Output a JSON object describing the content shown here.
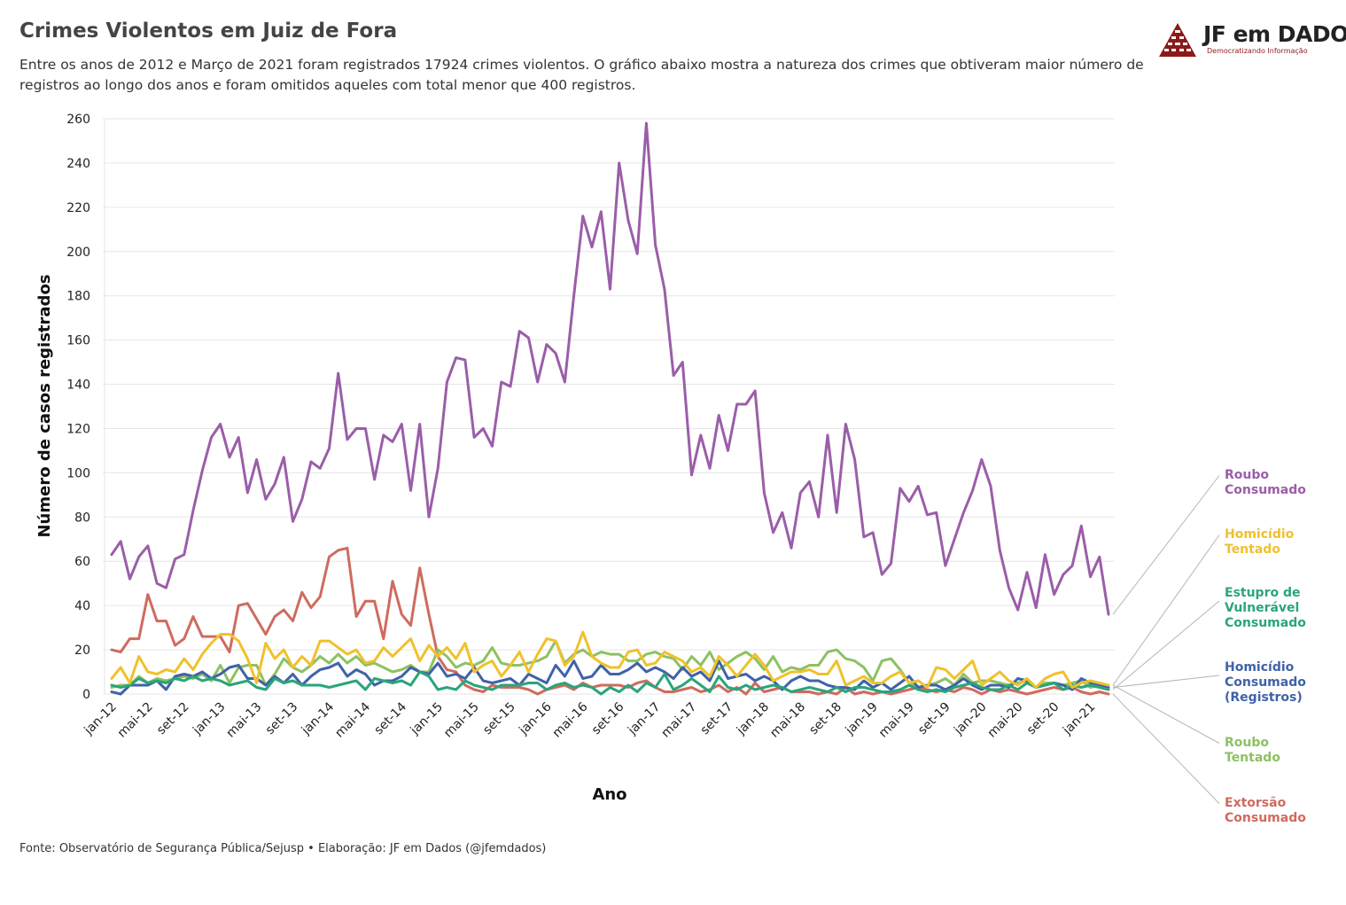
{
  "header": {
    "title": "Crimes Violentos em Juiz de Fora",
    "subtitle": "Entre os anos de 2012 e Março de 2021 foram registrados 17924 crimes violentos. O gráfico abaixo mostra a natureza dos crimes que obtiveram maior número de registros ao longo dos anos e foram omitidos aqueles com total menor que 400 registros."
  },
  "logo": {
    "text": "JF em DADOS",
    "tagline": "Democratizando Informação",
    "color": "#8b1a1a"
  },
  "source": "Fonte: Observatório de Segurança Pública/Sejusp • Elaboração: JF em Dados (@jfemdados)",
  "chart_data": {
    "type": "line",
    "title": "Crimes Violentos em Juiz de Fora",
    "xlabel": "Ano",
    "ylabel": "Número de casos registrados",
    "ylim": [
      0,
      260
    ],
    "yticks": [
      0,
      20,
      40,
      60,
      80,
      100,
      120,
      140,
      160,
      180,
      200,
      220,
      240,
      260
    ],
    "grid": "horizontal",
    "legend": "right, direct labels",
    "x_tick_labels": [
      "jan-12",
      "mai-12",
      "set-12",
      "jan-13",
      "mai-13",
      "set-13",
      "jan-14",
      "mai-14",
      "set-14",
      "jan-15",
      "mai-15",
      "set-15",
      "jan-16",
      "mai-16",
      "set-16",
      "jan-17",
      "mai-17",
      "set-17",
      "jan-18",
      "mai-18",
      "set-18",
      "jan-19",
      "mai-19",
      "set-19",
      "jan-20",
      "mai-20",
      "set-20",
      "jan-21"
    ],
    "x_tick_every": 4,
    "x_start": "jan-12",
    "x_end": "mar-21",
    "series": [
      {
        "name": "Roubo Consumado",
        "label_lines": [
          "Roubo",
          "Consumado"
        ],
        "color": "#9a5ea8",
        "values": [
          63,
          69,
          52,
          62,
          67,
          50,
          48,
          61,
          63,
          83,
          101,
          116,
          122,
          107,
          116,
          91,
          106,
          88,
          95,
          107,
          78,
          88,
          105,
          102,
          111,
          145,
          115,
          120,
          120,
          97,
          117,
          114,
          122,
          92,
          122,
          80,
          102,
          141,
          152,
          151,
          116,
          120,
          112,
          141,
          139,
          164,
          161,
          141,
          158,
          154,
          141,
          180,
          216,
          202,
          218,
          183,
          240,
          214,
          199,
          258,
          203,
          183,
          144,
          150,
          99,
          117,
          102,
          126,
          110,
          131,
          131,
          137,
          91,
          73,
          82,
          66,
          91,
          96,
          80,
          117,
          82,
          122,
          106,
          71,
          73,
          54,
          59,
          93,
          87,
          94,
          81,
          82,
          58,
          70,
          82,
          92,
          106,
          94,
          65,
          48,
          38,
          55,
          39,
          63,
          45,
          54,
          58,
          76,
          53,
          62,
          36
        ]
      },
      {
        "name": "Homicídio Tentado",
        "label_lines": [
          "Homicídio",
          "Tentado"
        ],
        "color": "#f0c12b",
        "values": [
          7,
          12,
          5,
          17,
          10,
          9,
          11,
          10,
          16,
          11,
          18,
          23,
          27,
          27,
          24,
          16,
          5,
          23,
          16,
          20,
          12,
          17,
          13,
          24,
          24,
          21,
          18,
          20,
          14,
          15,
          21,
          17,
          21,
          25,
          15,
          22,
          17,
          21,
          16,
          23,
          10,
          13,
          15,
          8,
          13,
          19,
          10,
          18,
          25,
          24,
          13,
          17,
          28,
          17,
          14,
          12,
          12,
          19,
          20,
          13,
          14,
          19,
          17,
          15,
          10,
          12,
          8,
          17,
          13,
          8,
          13,
          18,
          13,
          6,
          8,
          10,
          10,
          11,
          9,
          9,
          15,
          4,
          6,
          8,
          5,
          5,
          8,
          10,
          5,
          6,
          3,
          12,
          11,
          7,
          11,
          15,
          4,
          7,
          10,
          6,
          4,
          7,
          3,
          7,
          9,
          10,
          3,
          5,
          6,
          5,
          4
        ]
      },
      {
        "name": "Estupro de Vulnerável Consumado",
        "label_lines": [
          "Estupro de",
          "Vulnerável",
          "Consumado"
        ],
        "color": "#2aa57a",
        "values": [
          4,
          3,
          4,
          7,
          5,
          6,
          5,
          7,
          6,
          8,
          6,
          7,
          6,
          4,
          5,
          6,
          3,
          2,
          7,
          5,
          6,
          4,
          4,
          4,
          3,
          4,
          5,
          6,
          2,
          7,
          6,
          5,
          6,
          4,
          10,
          8,
          2,
          3,
          2,
          6,
          4,
          3,
          2,
          4,
          4,
          4,
          5,
          5,
          2,
          4,
          5,
          3,
          4,
          3,
          0,
          3,
          1,
          4,
          1,
          5,
          3,
          9,
          2,
          4,
          7,
          4,
          1,
          8,
          3,
          2,
          4,
          2,
          3,
          4,
          3,
          1,
          2,
          3,
          2,
          1,
          3,
          1,
          3,
          3,
          2,
          1,
          1,
          2,
          4,
          2,
          1,
          2,
          1,
          3,
          4,
          5,
          3,
          2,
          2,
          4,
          2,
          5,
          3,
          4,
          5,
          2,
          4,
          3,
          4,
          3,
          2
        ]
      },
      {
        "name": "Homicídio Consumado (Registros)",
        "label_lines": [
          "Homicídio",
          "Consumado",
          "(Registros)"
        ],
        "color": "#4062a8",
        "values": [
          1,
          0,
          4,
          4,
          4,
          6,
          2,
          8,
          9,
          8,
          10,
          7,
          9,
          12,
          13,
          7,
          7,
          4,
          8,
          5,
          9,
          4,
          8,
          11,
          12,
          14,
          8,
          11,
          9,
          4,
          6,
          6,
          8,
          12,
          10,
          9,
          14,
          8,
          9,
          7,
          12,
          6,
          5,
          6,
          7,
          4,
          9,
          7,
          5,
          13,
          8,
          15,
          7,
          8,
          13,
          9,
          9,
          11,
          14,
          10,
          12,
          10,
          7,
          12,
          8,
          10,
          6,
          15,
          7,
          8,
          9,
          6,
          8,
          6,
          2,
          6,
          8,
          6,
          6,
          4,
          3,
          3,
          2,
          6,
          3,
          5,
          2,
          5,
          8,
          3,
          4,
          4,
          2,
          4,
          7,
          4,
          2,
          4,
          4,
          3,
          7,
          6,
          3,
          4,
          5,
          4,
          2,
          7,
          5,
          4,
          3
        ]
      },
      {
        "name": "Roubo Tentado",
        "label_lines": [
          "Roubo",
          "Tentado"
        ],
        "color": "#8dc162",
        "values": [
          3,
          4,
          4,
          8,
          5,
          7,
          6,
          7,
          8,
          7,
          9,
          6,
          13,
          5,
          12,
          13,
          13,
          4,
          9,
          16,
          12,
          10,
          13,
          17,
          14,
          18,
          14,
          17,
          13,
          14,
          12,
          10,
          11,
          13,
          10,
          10,
          20,
          17,
          12,
          14,
          13,
          15,
          21,
          14,
          13,
          13,
          14,
          15,
          17,
          24,
          14,
          18,
          20,
          17,
          19,
          18,
          18,
          15,
          15,
          18,
          19,
          17,
          16,
          11,
          17,
          13,
          19,
          11,
          14,
          17,
          19,
          16,
          11,
          17,
          10,
          12,
          11,
          13,
          13,
          19,
          20,
          16,
          15,
          12,
          6,
          15,
          16,
          11,
          5,
          3,
          4,
          5,
          7,
          4,
          9,
          5,
          6,
          6,
          5,
          4,
          5,
          6,
          3,
          5,
          5,
          4,
          5,
          6,
          3,
          4,
          4
        ]
      },
      {
        "name": "Extorsão Consumado",
        "label_lines": [
          "Extorsão",
          "Consumado"
        ],
        "color": "#cf6b5f",
        "values": [
          20,
          19,
          25,
          25,
          45,
          33,
          33,
          22,
          25,
          35,
          26,
          26,
          26,
          19,
          40,
          41,
          34,
          27,
          35,
          38,
          33,
          46,
          39,
          44,
          62,
          65,
          66,
          35,
          42,
          42,
          25,
          51,
          36,
          31,
          57,
          36,
          17,
          11,
          10,
          4,
          2,
          1,
          4,
          3,
          3,
          3,
          2,
          0,
          2,
          3,
          4,
          2,
          5,
          3,
          4,
          4,
          4,
          3,
          5,
          6,
          3,
          1,
          1,
          2,
          3,
          1,
          2,
          4,
          1,
          3,
          0,
          5,
          1,
          2,
          3,
          1,
          1,
          1,
          0,
          1,
          0,
          3,
          0,
          1,
          0,
          1,
          0,
          1,
          2,
          3,
          2,
          1,
          2,
          1,
          3,
          2,
          0,
          2,
          1,
          2,
          1,
          0,
          1,
          2,
          3,
          2,
          3,
          1,
          0,
          1,
          0
        ]
      }
    ]
  }
}
